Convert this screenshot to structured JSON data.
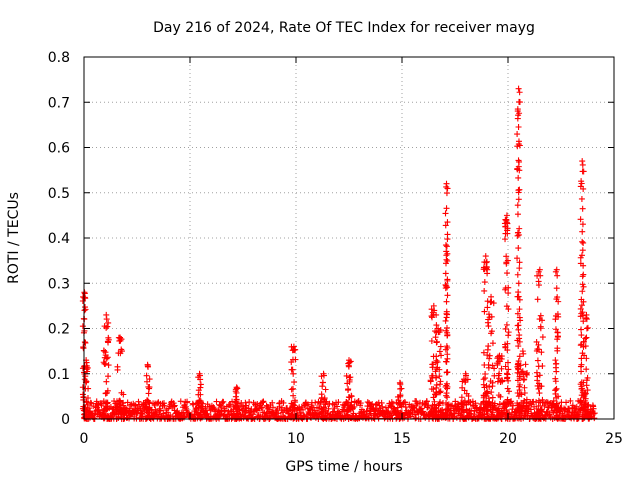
{
  "chart_data": {
    "type": "scatter",
    "title": "Day 216 of 2024, Rate Of TEC Index for receiver mayg",
    "xlabel": "GPS time / hours",
    "ylabel": "ROTI / TECUs",
    "xlim": [
      0,
      25
    ],
    "ylim": [
      0,
      0.8
    ],
    "xticks": [
      0,
      5,
      10,
      15,
      20,
      25
    ],
    "yticks": [
      0,
      0.1,
      0.2,
      0.3,
      0.4,
      0.5,
      0.6,
      0.7,
      0.8
    ],
    "grid": true,
    "marker": "+",
    "series_color": "#ff0000",
    "series": [
      {
        "name": "ROTI",
        "baseline_range": [
          0,
          24.1
        ],
        "baseline_max": 0.04,
        "spikes": [
          {
            "x": 0.02,
            "max": 0.28,
            "width": 0.15
          },
          {
            "x": 0.1,
            "max": 0.13,
            "width": 0.2
          },
          {
            "x": 1.05,
            "max": 0.23,
            "width": 0.25
          },
          {
            "x": 1.7,
            "max": 0.18,
            "width": 0.35
          },
          {
            "x": 3.0,
            "max": 0.12,
            "width": 0.2
          },
          {
            "x": 5.45,
            "max": 0.1,
            "width": 0.15
          },
          {
            "x": 7.2,
            "max": 0.07,
            "width": 0.1
          },
          {
            "x": 9.9,
            "max": 0.16,
            "width": 0.25
          },
          {
            "x": 11.3,
            "max": 0.1,
            "width": 0.2
          },
          {
            "x": 12.5,
            "max": 0.13,
            "width": 0.25
          },
          {
            "x": 14.9,
            "max": 0.08,
            "width": 0.2
          },
          {
            "x": 16.5,
            "max": 0.25,
            "width": 0.3
          },
          {
            "x": 16.7,
            "max": 0.2,
            "width": 0.3
          },
          {
            "x": 17.1,
            "max": 0.52,
            "width": 0.1
          },
          {
            "x": 18.0,
            "max": 0.1,
            "width": 0.4
          },
          {
            "x": 18.95,
            "max": 0.36,
            "width": 0.2
          },
          {
            "x": 19.2,
            "max": 0.27,
            "width": 0.35
          },
          {
            "x": 19.6,
            "max": 0.14,
            "width": 0.3
          },
          {
            "x": 19.95,
            "max": 0.45,
            "width": 0.2
          },
          {
            "x": 20.5,
            "max": 0.73,
            "width": 0.15
          },
          {
            "x": 20.7,
            "max": 0.15,
            "width": 0.4
          },
          {
            "x": 21.5,
            "max": 0.33,
            "width": 0.3
          },
          {
            "x": 22.3,
            "max": 0.33,
            "width": 0.15
          },
          {
            "x": 23.5,
            "max": 0.57,
            "width": 0.15
          },
          {
            "x": 23.7,
            "max": 0.23,
            "width": 0.25
          }
        ]
      }
    ]
  }
}
